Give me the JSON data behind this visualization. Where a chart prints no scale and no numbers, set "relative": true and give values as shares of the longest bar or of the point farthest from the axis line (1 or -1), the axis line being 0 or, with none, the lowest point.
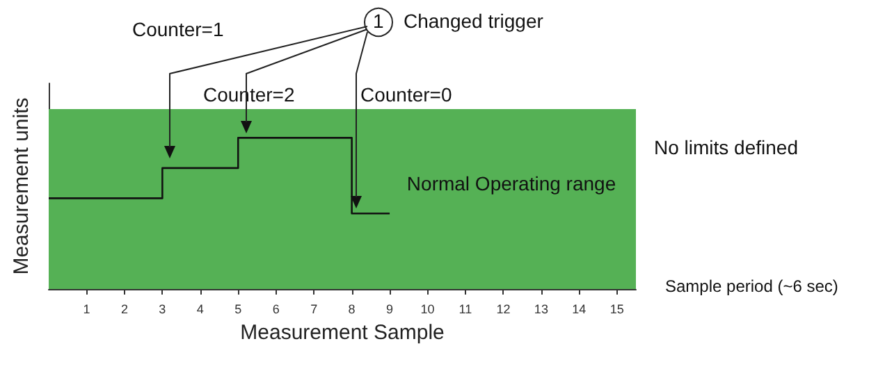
{
  "chart_data": {
    "type": "step",
    "relative": true,
    "xlabel": "Measurement Sample",
    "ylabel": "Measurement units",
    "x": [
      0,
      3,
      5,
      8,
      9
    ],
    "series": [
      {
        "color": "#111111",
        "values": [
          0.6,
          0.8,
          1,
          0.5,
          0.5
        ]
      }
    ],
    "xlim": [
      0,
      15.5
    ],
    "xticks": [
      1,
      2,
      3,
      4,
      5,
      6,
      7,
      8,
      9,
      10,
      11,
      12,
      13,
      14,
      15
    ],
    "tick_labels": "x",
    "grid": false,
    "marker": "none",
    "line_style": "solid",
    "bands": [
      {
        "axis": "y",
        "from": 0,
        "to": 1.19,
        "label": "Normal Operating range",
        "color": "#55b155"
      }
    ],
    "annotations": [
      "1",
      "Changed trigger",
      "Counter=1",
      "Counter=2",
      "Counter=0",
      "No limits defined",
      "Sample period (~6 sec)"
    ]
  }
}
